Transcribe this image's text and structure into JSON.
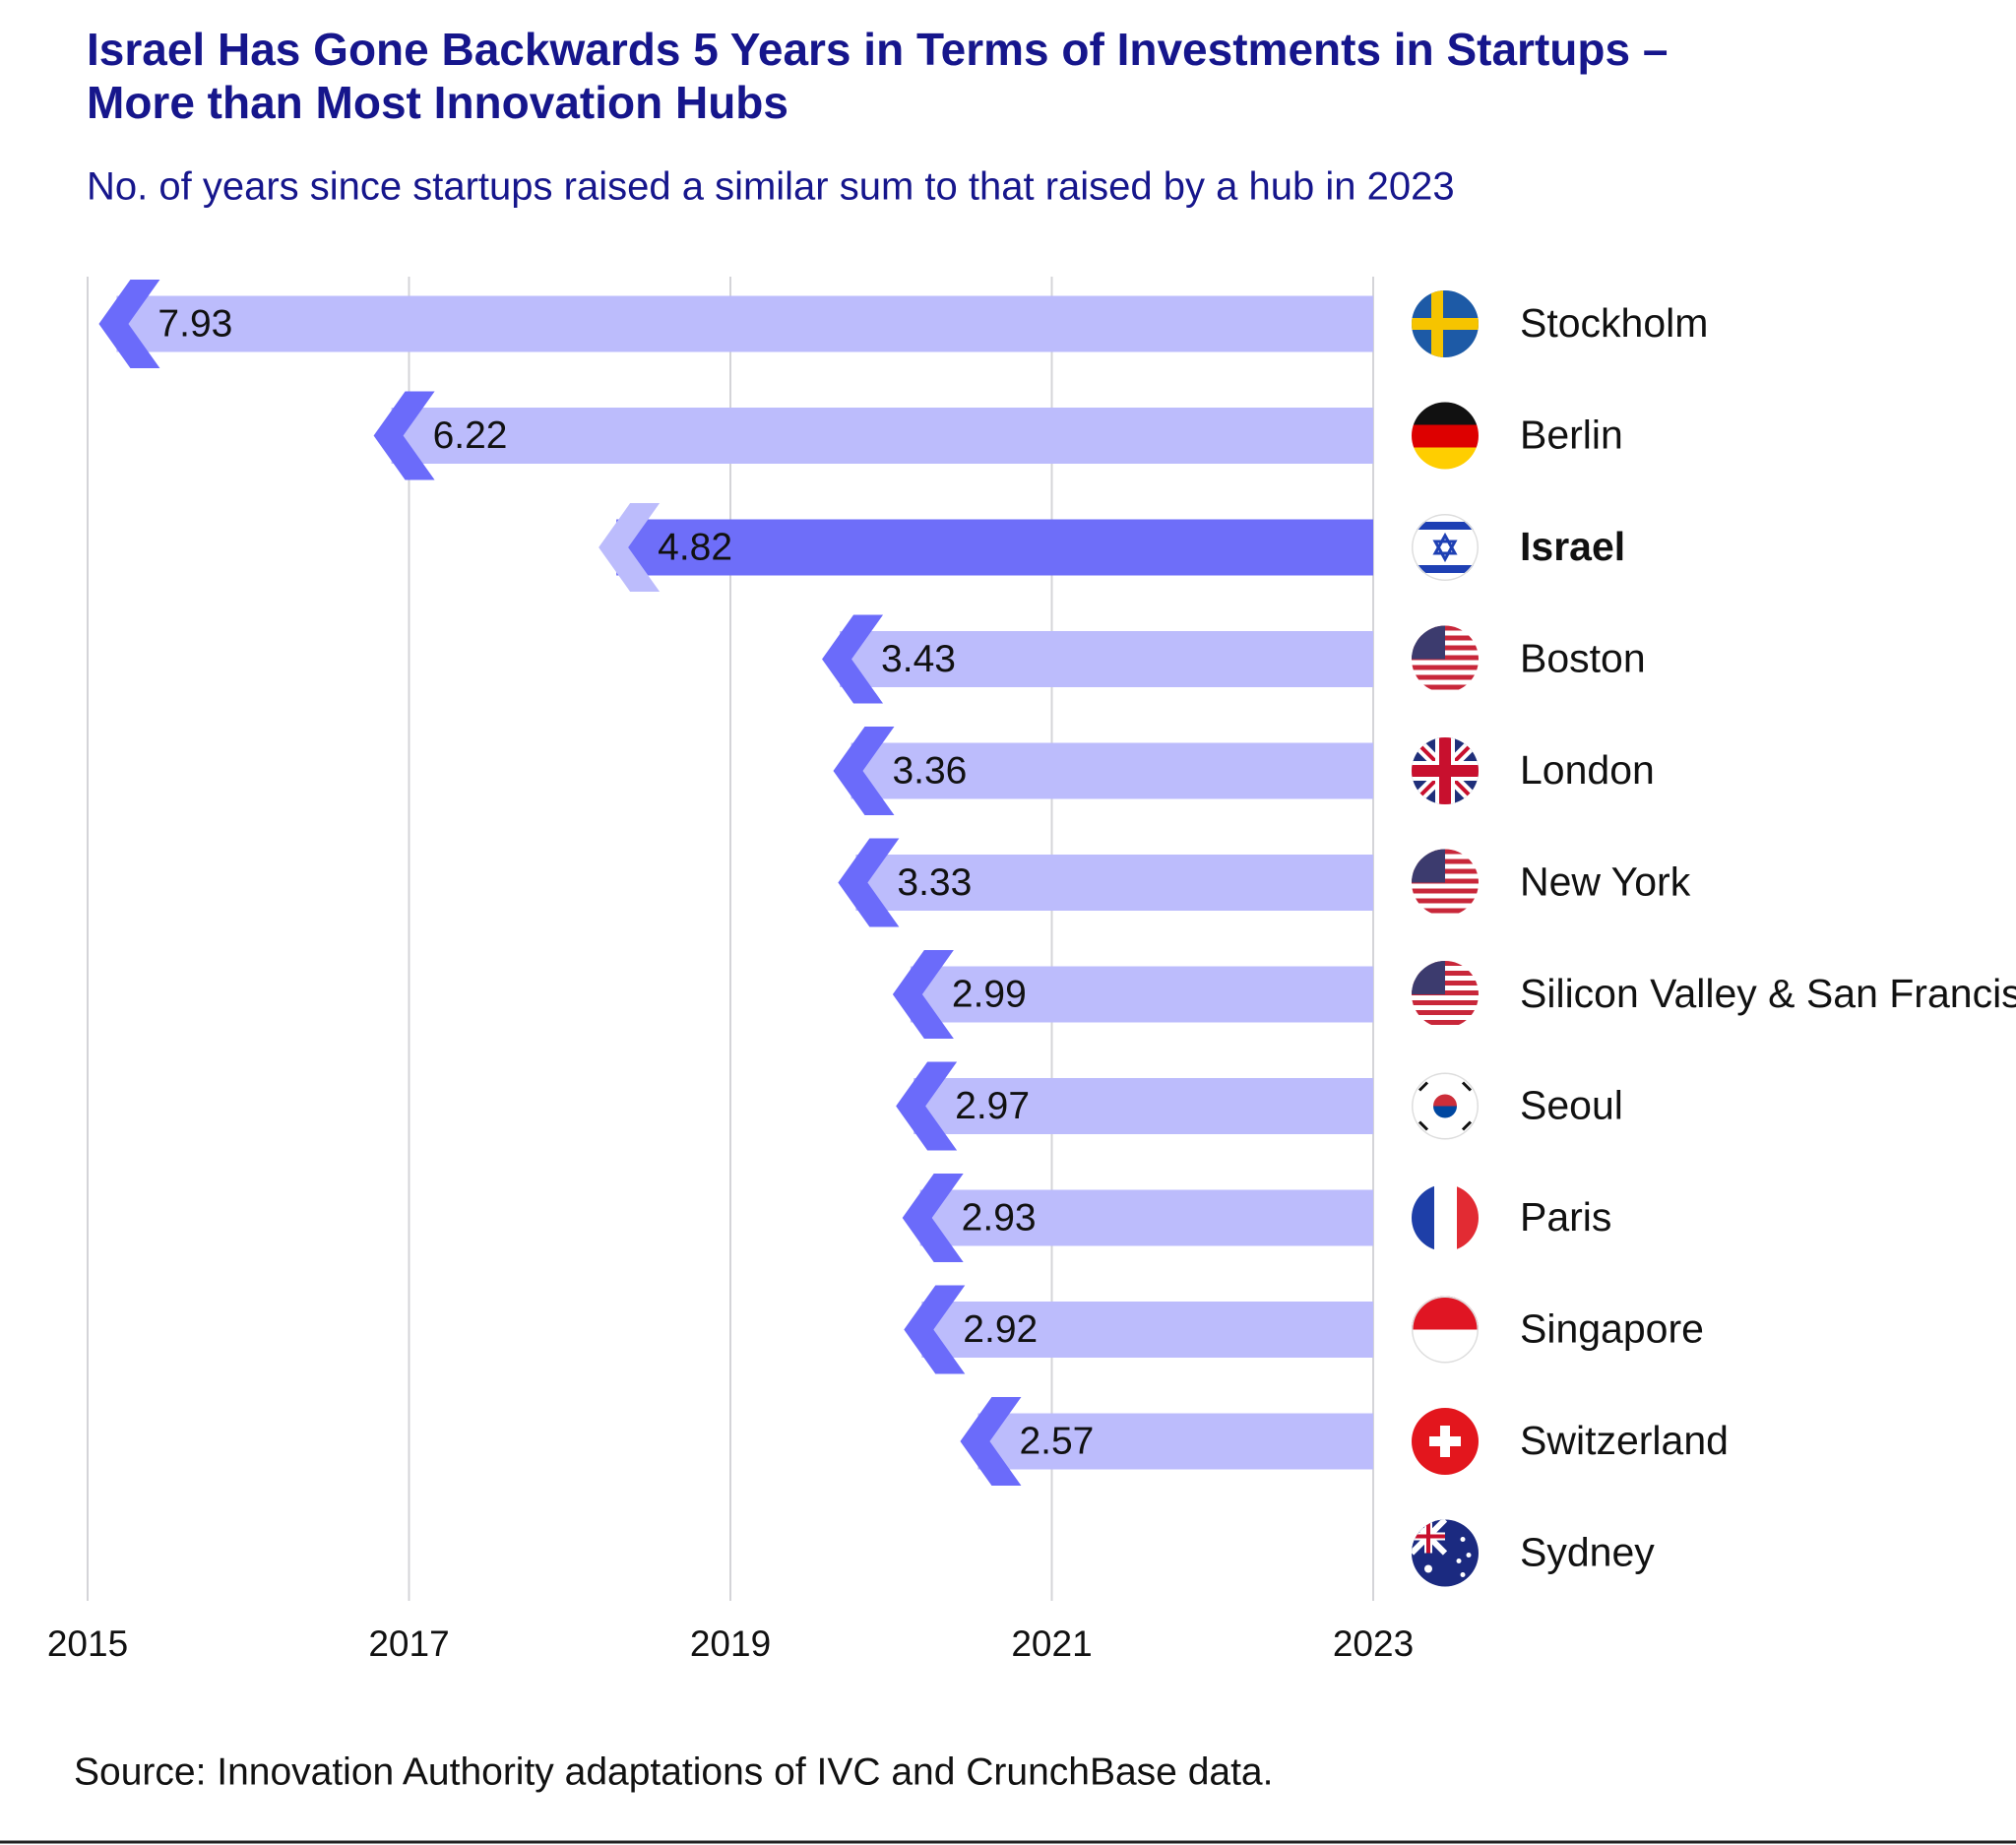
{
  "chart_data": {
    "type": "bar",
    "orientation": "horizontal",
    "title": "Israel Has Gone Backwards 5 Years in Terms of Investments in Startups –",
    "title_line2": "More than Most Innovation Hubs",
    "subtitle": "No. of years since startups raised a similar sum to that raised by a hub in 2023",
    "source": "Source: Innovation Authority adaptations of IVC and CrunchBase data.",
    "categories": [
      "Stockholm",
      "Berlin",
      "Israel",
      "Boston",
      "London",
      "New York",
      "Silicon Valley & San Francisco",
      "Seoul",
      "Paris",
      "Singapore",
      "Switzerland",
      "Sydney"
    ],
    "values": [
      7.93,
      6.22,
      4.82,
      3.43,
      3.36,
      3.33,
      2.99,
      2.97,
      2.93,
      2.92,
      2.57,
      null
    ],
    "color": "#bcbcfc",
    "arrow_color": "#6b6bfa",
    "colors": [
      "#bcbcfc",
      "#bcbcfc",
      "#6e6ef9",
      "#bcbcfc",
      "#bcbcfc",
      "#bcbcfc",
      "#bcbcfc",
      "#bcbcfc",
      "#bcbcfc",
      "#bcbcfc",
      "#bcbcfc",
      "#bcbcfc"
    ],
    "xlim": [
      2015,
      2023
    ],
    "xticks": [
      2015,
      2017,
      2019,
      2021,
      2023
    ],
    "grid": true
  }
}
